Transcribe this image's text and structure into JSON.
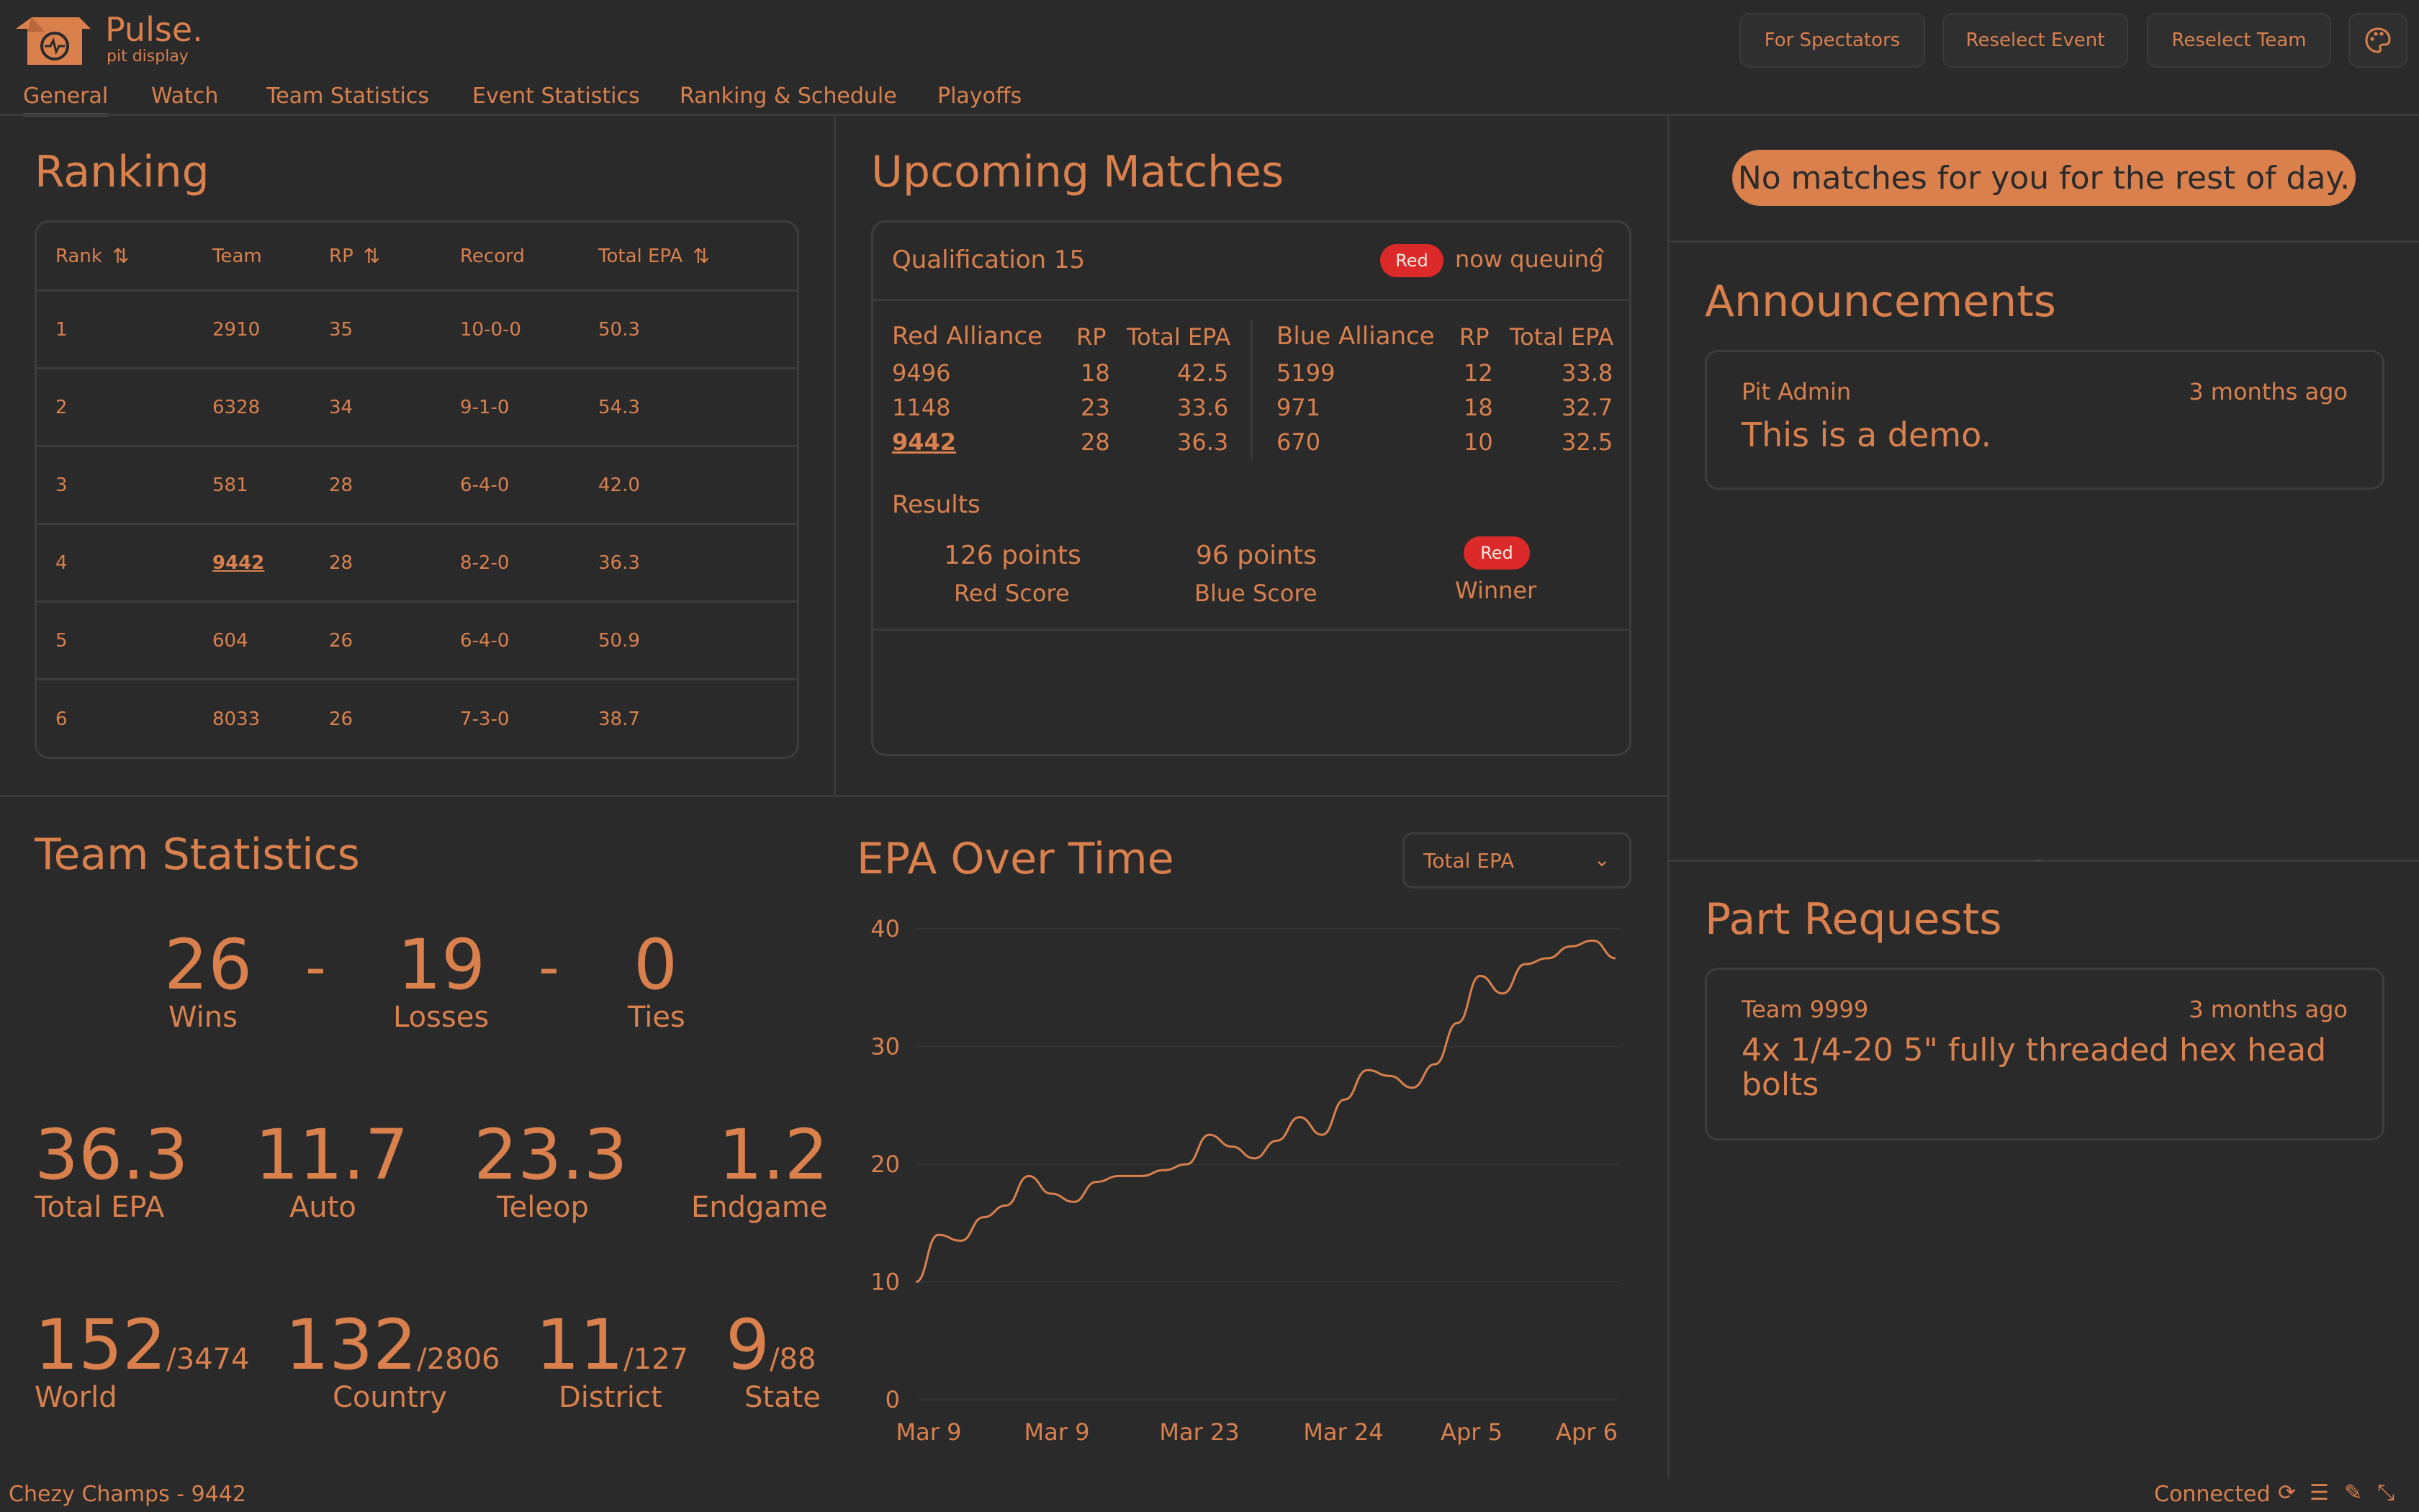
{
  "app": {
    "title": "Pulse.",
    "subtitle": "pit display"
  },
  "header_buttons": {
    "spectators": "For Spectators",
    "reselect_event": "Reselect Event",
    "reselect_team": "Reselect Team"
  },
  "tabs": [
    "General",
    "Watch",
    "Team Statistics",
    "Event Statistics",
    "Ranking & Schedule",
    "Playoffs"
  ],
  "ranking": {
    "title": "Ranking",
    "columns": [
      "Rank",
      "Team",
      "RP",
      "Record",
      "Total EPA"
    ],
    "rows": [
      {
        "rank": "1",
        "team": "2910",
        "rp": "35",
        "record": "10-0-0",
        "epa": "50.3"
      },
      {
        "rank": "2",
        "team": "6328",
        "rp": "34",
        "record": "9-1-0",
        "epa": "54.3"
      },
      {
        "rank": "3",
        "team": "581",
        "rp": "28",
        "record": "6-4-0",
        "epa": "42.0"
      },
      {
        "rank": "4",
        "team": "9442",
        "rp": "28",
        "record": "8-2-0",
        "epa": "36.3"
      },
      {
        "rank": "5",
        "team": "604",
        "rp": "26",
        "record": "6-4-0",
        "epa": "50.9"
      },
      {
        "rank": "6",
        "team": "8033",
        "rp": "26",
        "record": "7-3-0",
        "epa": "38.7"
      }
    ]
  },
  "upcoming": {
    "title": "Upcoming Matches",
    "match_name": "Qualification 15",
    "alliance_badge": "Red",
    "status": "now queuing",
    "red": {
      "label": "Red Alliance",
      "rp_label": "RP",
      "epa_label": "Total EPA",
      "teams": [
        {
          "team": "9496",
          "rp": "18",
          "epa": "42.5"
        },
        {
          "team": "1148",
          "rp": "23",
          "epa": "33.6"
        },
        {
          "team": "9442",
          "rp": "28",
          "epa": "36.3"
        }
      ]
    },
    "blue": {
      "label": "Blue Alliance",
      "rp_label": "RP",
      "epa_label": "Total EPA",
      "teams": [
        {
          "team": "5199",
          "rp": "12",
          "epa": "33.8"
        },
        {
          "team": "971",
          "rp": "18",
          "epa": "32.7"
        },
        {
          "team": "670",
          "rp": "10",
          "epa": "32.5"
        }
      ]
    },
    "results_label": "Results",
    "red_score": "126 points",
    "red_score_label": "Red Score",
    "blue_score": "96 points",
    "blue_score_label": "Blue Score",
    "winner_badge": "Red",
    "winner_label": "Winner"
  },
  "right": {
    "no_matches": "No matches for you for the rest of day.",
    "announcements_title": "Announcements",
    "announcement": {
      "author": "Pit Admin",
      "time": "3 months ago",
      "text": "This is a demo."
    },
    "parts_title": "Part Requests",
    "part": {
      "author": "Team 9999",
      "time": "3 months ago",
      "text": "4x 1/4-20 5\" fully threaded hex head bolts"
    }
  },
  "team_stats": {
    "title": "Team Statistics",
    "wins": "26",
    "wins_label": "Wins",
    "losses": "19",
    "losses_label": "Losses",
    "ties": "0",
    "ties_label": "Ties",
    "sep": "-",
    "epa": [
      {
        "value": "36.3",
        "label": "Total EPA"
      },
      {
        "value": "11.7",
        "label": "Auto"
      },
      {
        "value": "23.3",
        "label": "Teleop"
      },
      {
        "value": "1.2",
        "label": "Endgame"
      }
    ],
    "ranks": [
      {
        "value": "152",
        "of": "/3474",
        "label": "World"
      },
      {
        "value": "132",
        "of": "/2806",
        "label": "Country"
      },
      {
        "value": "11",
        "of": "/127",
        "label": "District"
      },
      {
        "value": "9",
        "of": "/88",
        "label": "State"
      }
    ]
  },
  "epa_chart": {
    "title": "EPA Over Time",
    "select_value": "Total EPA"
  },
  "chart_data": {
    "type": "line",
    "title": "EPA Over Time",
    "x_ticks": [
      "Mar 9",
      "Mar 9",
      "Mar 23",
      "Mar 24",
      "Apr 5",
      "Apr 6"
    ],
    "y_ticks": [
      0,
      10,
      20,
      30,
      40
    ],
    "ylim": [
      0,
      40
    ],
    "series": [
      {
        "values": [
          10.0,
          14.0,
          13.5,
          15.5,
          16.5,
          19.0,
          17.5,
          16.8,
          18.5,
          19.0,
          19.0,
          19.5,
          20.0,
          22.5,
          21.5,
          20.5,
          22.0,
          24.0,
          22.5,
          25.5,
          28.0,
          27.5,
          26.5,
          28.5,
          32.0,
          36.0,
          34.5,
          37.0,
          37.5,
          38.5,
          39.0,
          37.5
        ]
      }
    ],
    "grid": true
  },
  "status_bar": {
    "event": "Chezy Champs - 9442",
    "connection": "Connected"
  },
  "colors": {
    "accent": "#d9804d",
    "background": "#2a2a2b",
    "red": "#dc2a2a",
    "border": "#3d3d3d"
  }
}
